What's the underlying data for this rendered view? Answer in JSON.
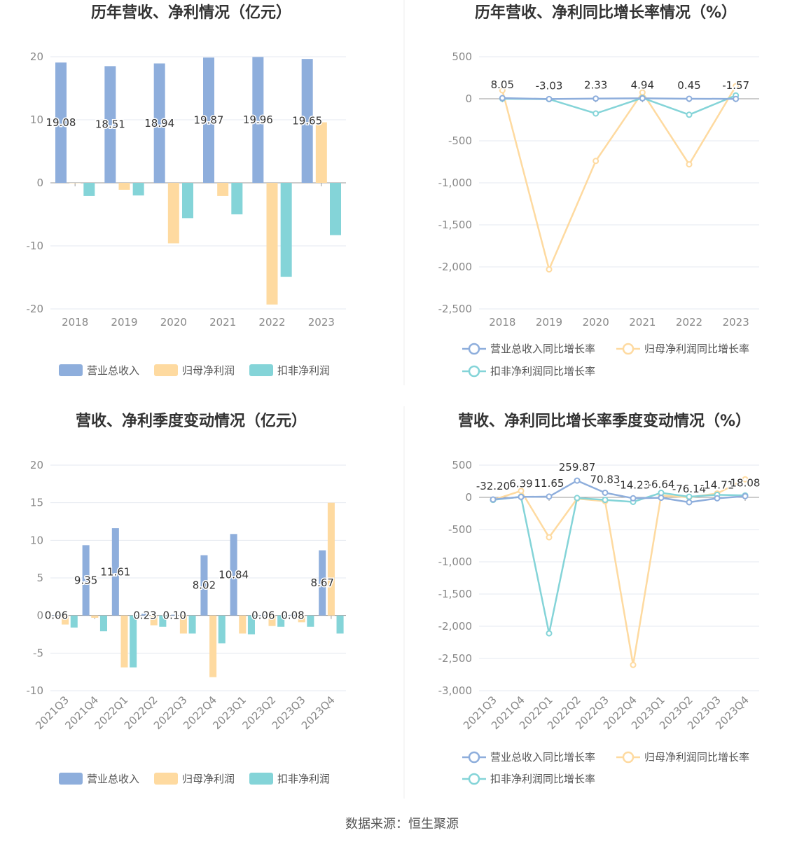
{
  "source": "数据来源：恒生聚源",
  "colors": {
    "revenue": "#8eaedc",
    "net": "#fedaa0",
    "deducted": "#84d4d8"
  },
  "chart_data": [
    {
      "type": "bar",
      "title": "历年营收、净利情况（亿元）",
      "categories": [
        "2018",
        "2019",
        "2020",
        "2021",
        "2022",
        "2023"
      ],
      "ylim": [
        -20,
        20
      ],
      "yticks": [
        20,
        10,
        0,
        -10,
        -20
      ],
      "grid": true,
      "legend": "bottom",
      "series": [
        {
          "name": "营业总收入",
          "values": [
            19.08,
            18.51,
            18.94,
            19.87,
            19.96,
            19.65
          ],
          "labels": [
            "19.08",
            "18.51",
            "18.94",
            "19.87",
            "19.96",
            "19.65"
          ]
        },
        {
          "name": "归母净利润",
          "values": [
            0,
            -1.1,
            -9.6,
            -2.1,
            -19.3,
            9.6
          ]
        },
        {
          "name": "扣非净利润",
          "values": [
            -2.1,
            -2.0,
            -5.6,
            -5.0,
            -14.9,
            -8.3
          ]
        }
      ]
    },
    {
      "type": "line",
      "title": "历年营收、净利同比增长率情况（%）",
      "categories": [
        "2018",
        "2019",
        "2020",
        "2021",
        "2022",
        "2023"
      ],
      "ylim": [
        -2500,
        500
      ],
      "yticks": [
        500,
        0,
        -500,
        -1000,
        -1500,
        -2000,
        -2500
      ],
      "ytick_labels": [
        "500",
        "0",
        "-500",
        "-1,000",
        "-1,500",
        "-2,000",
        "-2,500"
      ],
      "grid": true,
      "legend": "bottom",
      "series": [
        {
          "name": "营业总收入同比增长率",
          "values": [
            8.05,
            -3.03,
            2.33,
            4.94,
            0.45,
            -1.57
          ],
          "labels": [
            "8.05",
            "-3.03",
            "2.33",
            "4.94",
            "0.45",
            "-1.57"
          ]
        },
        {
          "name": "归母净利润同比增长率",
          "values": [
            100,
            -2030,
            -740,
            75,
            -780,
            150
          ]
        },
        {
          "name": "扣非净利润同比增长率",
          "values": [
            0,
            -5,
            -175,
            10,
            -190,
            40
          ]
        }
      ]
    },
    {
      "type": "bar",
      "title": "营收、净利季度变动情况（亿元）",
      "categories": [
        "2021Q3",
        "2021Q4",
        "2022Q1",
        "2022Q2",
        "2022Q3",
        "2022Q4",
        "2023Q1",
        "2023Q2",
        "2023Q3",
        "2023Q4"
      ],
      "ylim": [
        -10,
        20
      ],
      "yticks": [
        20,
        15,
        10,
        5,
        0,
        -5,
        -10
      ],
      "grid": true,
      "legend": "bottom",
      "series": [
        {
          "name": "营业总收入",
          "values": [
            0.06,
            9.35,
            11.61,
            0.23,
            0.1,
            8.02,
            10.84,
            0.06,
            0.08,
            8.67
          ],
          "labels": [
            "0.06",
            "9.35",
            "11.61",
            "0.23",
            "0.10",
            "8.02",
            "10.84",
            "0.06",
            "0.08",
            "8.67"
          ]
        },
        {
          "name": "归母净利润",
          "values": [
            -1.2,
            -0.3,
            -6.9,
            -1.3,
            -2.4,
            -8.2,
            -2.4,
            -1.4,
            -0.9,
            15.0
          ]
        },
        {
          "name": "扣非净利润",
          "values": [
            -1.6,
            -2.1,
            -6.9,
            -1.5,
            -2.4,
            -3.7,
            -2.5,
            -1.5,
            -1.5,
            -2.4
          ]
        }
      ]
    },
    {
      "type": "line",
      "title": "营收、净利同比增长率季度变动情况（%）",
      "categories": [
        "2021Q3",
        "2021Q4",
        "2022Q1",
        "2022Q2",
        "2022Q3",
        "2022Q4",
        "2023Q1",
        "2023Q2",
        "2023Q3",
        "2023Q4"
      ],
      "ylim": [
        -3000,
        500
      ],
      "yticks": [
        500,
        0,
        -500,
        -1000,
        -1500,
        -2000,
        -2500,
        -3000
      ],
      "ytick_labels": [
        "500",
        "0",
        "-500",
        "-1,000",
        "-1,500",
        "-2,000",
        "-2,500",
        "-3,000"
      ],
      "grid": true,
      "legend": "bottom",
      "series": [
        {
          "name": "营业总收入同比增长率",
          "values": [
            -32.2,
            6.39,
            11.65,
            259.87,
            70.83,
            -14.23,
            -6.64,
            -76.14,
            -14.71,
            18.08
          ],
          "labels": [
            "-32.20",
            "6.39",
            "11.65",
            "259.87",
            "70.83",
            "-14.23",
            "-6.64",
            "-76.14",
            "-14.71",
            "18.08"
          ]
        },
        {
          "name": "归母净利润同比增长率",
          "values": [
            -40,
            100,
            -620,
            -20,
            -60,
            -2600,
            30,
            0,
            60,
            280
          ]
        },
        {
          "name": "扣非净利润同比增长率",
          "values": [
            -40,
            10,
            -2110,
            -10,
            -40,
            -70,
            70,
            10,
            40,
            30
          ]
        }
      ]
    }
  ]
}
